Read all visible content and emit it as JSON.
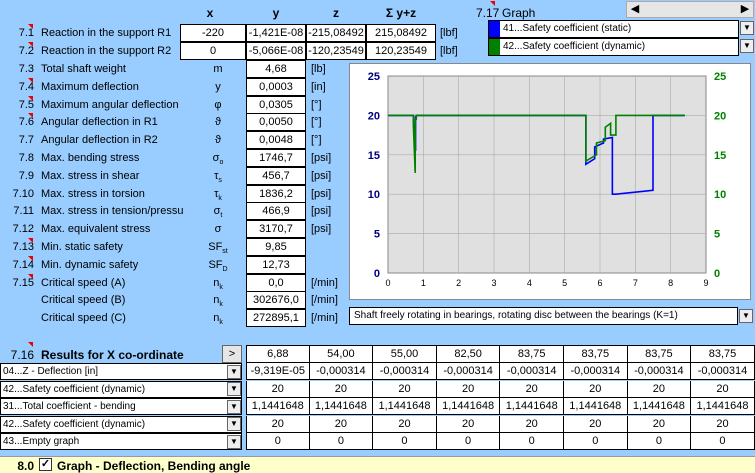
{
  "header": {
    "x": "x",
    "y": "y",
    "z": "z",
    "yz": "Σ y+z",
    "graph_num": "7.17",
    "graph_label": "Graph"
  },
  "reactions": [
    {
      "num": "7.1",
      "label": "Reaction in the support R1",
      "x": "-220",
      "y": "-1,421E-08",
      "z": "-215,08492",
      "yz": "215,08492",
      "unit": "[lbf]"
    },
    {
      "num": "7.2",
      "label": "Reaction in the support R2",
      "x": "0",
      "y": "-5,066E-08",
      "z": "-120,23549",
      "yz": "120,23549",
      "unit": "[lbf]"
    }
  ],
  "results": [
    {
      "num": "7.3",
      "label": "Total shaft weight",
      "sym": "m",
      "sub": "",
      "value": "4,68",
      "unit": "[lb]"
    },
    {
      "num": "7.4",
      "label": "Maximum deflection",
      "sym": "y",
      "sub": "",
      "value": "0,0003",
      "unit": "[in]"
    },
    {
      "num": "7.5",
      "label": "Maximum angular deflection",
      "sym": "φ",
      "sub": "",
      "value": "0,0305",
      "unit": "[°]"
    },
    {
      "num": "7.6",
      "label": "Angular deflection in R1",
      "sym": "ϑ",
      "sub": "",
      "value": "0,0050",
      "unit": "[°]"
    },
    {
      "num": "7.7",
      "label": "Angular deflection in R2",
      "sym": "ϑ",
      "sub": "",
      "value": "0,0048",
      "unit": "[°]"
    },
    {
      "num": "7.8",
      "label": "Max. bending stress",
      "sym": "σ",
      "sub": "o",
      "value": "1746,7",
      "unit": "[psi]"
    },
    {
      "num": "7.9",
      "label": "Max.  stress in shear",
      "sym": "τ",
      "sub": "s",
      "value": "456,7",
      "unit": "[psi]"
    },
    {
      "num": "7.10",
      "label": "Max. stress in torsion",
      "sym": "τ",
      "sub": "k",
      "value": "1836,2",
      "unit": "[psi]"
    },
    {
      "num": "7.11",
      "label": "Max. stress in tension/pressu",
      "sym": "σ",
      "sub": "t",
      "value": "466,9",
      "unit": "[psi]"
    },
    {
      "num": "7.12",
      "label": "Max. equivalent stress",
      "sym": "σ",
      "sub": "",
      "value": "3170,7",
      "unit": "[psi]"
    },
    {
      "num": "7.13",
      "label": "Min. static safety",
      "sym": "SF",
      "sub": "st",
      "value": "9,85",
      "unit": ""
    },
    {
      "num": "7.14",
      "label": "Min. dynamic safety",
      "sym": "SF",
      "sub": "D",
      "value": "12,73",
      "unit": ""
    },
    {
      "num": "7.15",
      "label": "Critical speed (A)",
      "sym": "n",
      "sub": "k",
      "value": "0,0",
      "unit": "[/min]"
    },
    {
      "num": "",
      "label": "Critical speed (B)",
      "sym": "n",
      "sub": "k",
      "value": "302676,0",
      "unit": "[/min]"
    },
    {
      "num": "",
      "label": "Critical speed (C)",
      "sym": "n",
      "sub": "k",
      "value": "272895,1",
      "unit": "[/min]"
    }
  ],
  "legend": [
    {
      "label": "41...Safety coefficient (static)",
      "color": "#0000ff"
    },
    {
      "label": "42...Safety coefficient (dynamic)",
      "color": "#008000"
    }
  ],
  "mode_select": "Shaft freely rotating in bearings, rotating disc between the bearings  (K=1)",
  "table": {
    "num": "7.16",
    "title": "Results for X co-ordinate",
    "button": ">",
    "x_values": [
      "6,88",
      "54,00",
      "55,00",
      "82,50",
      "83,75",
      "83,75",
      "83,75",
      "83,75"
    ],
    "rows": [
      {
        "label": "04...Z - Deflection  [in]",
        "values": [
          "-9,319E-05",
          "-0,000314",
          "-0,000314",
          "-0,000314",
          "-0,000314",
          "-0,000314",
          "-0,000314",
          "-0,000314"
        ]
      },
      {
        "label": "42...Safety coefficient (dynamic)",
        "values": [
          "20",
          "20",
          "20",
          "20",
          "20",
          "20",
          "20",
          "20"
        ]
      },
      {
        "label": "31...Total coefficient - bending",
        "values": [
          "1,1441648",
          "1,1441648",
          "1,1441648",
          "1,1441648",
          "1,1441648",
          "1,1441648",
          "1,1441648",
          "1,1441648"
        ]
      },
      {
        "label": "42...Safety coefficient (dynamic)",
        "values": [
          "20",
          "20",
          "20",
          "20",
          "20",
          "20",
          "20",
          "20"
        ]
      },
      {
        "label": "43...Empty graph",
        "values": [
          "0",
          "0",
          "0",
          "0",
          "0",
          "0",
          "0",
          "0"
        ]
      }
    ]
  },
  "footer": {
    "num": "8.0",
    "title": "Graph - Deflection, Bending angle",
    "checked": true
  },
  "chart_data": {
    "type": "line",
    "xlim": [
      0,
      9
    ],
    "ylim": [
      0,
      25
    ],
    "x_ticks": [
      "0",
      "1",
      "2",
      "3",
      "4",
      "5",
      "6",
      "7",
      "8",
      "9"
    ],
    "y_ticks": [
      "0",
      "5",
      "10",
      "15",
      "20",
      "25"
    ],
    "grid": true,
    "series": [
      {
        "color": "#0000ff",
        "x": [
          0,
          0.72,
          0.72,
          0.78,
          0.78,
          0.8,
          0.8,
          5.6,
          5.6,
          5.85,
          5.85,
          6.1,
          6.1,
          6.35,
          6.35,
          6.45,
          6.45,
          7.5,
          7.5,
          8.4
        ],
        "y": [
          20,
          20,
          19,
          15.5,
          19.8,
          19.8,
          20,
          20,
          13.8,
          14.5,
          16,
          16.5,
          17,
          17.2,
          10,
          10,
          10,
          10.5,
          20,
          20
        ]
      },
      {
        "color": "#008000",
        "x": [
          0,
          0.72,
          0.72,
          0.77,
          0.77,
          0.8,
          0.8,
          5.6,
          5.6,
          5.9,
          5.9,
          6.15,
          6.15,
          6.3,
          6.3,
          6.45,
          6.45,
          6.5,
          6.5,
          8.4
        ],
        "y": [
          20,
          20,
          18.5,
          12.7,
          19.5,
          19.5,
          20,
          20,
          14.2,
          15,
          16.5,
          16.8,
          18.5,
          19,
          17.5,
          17.5,
          20,
          20,
          20,
          20
        ]
      }
    ]
  }
}
